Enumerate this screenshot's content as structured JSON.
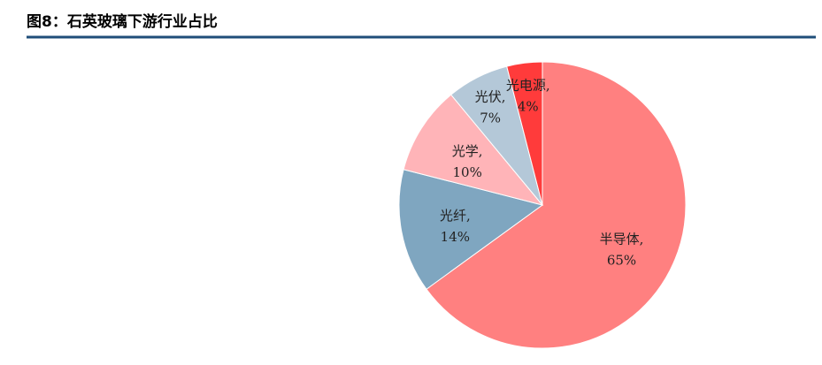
{
  "chart_data": {
    "type": "pie",
    "title": "图8：石英玻璃下游行业占比",
    "categories": [
      "半导体,",
      "光纤,",
      "光学,",
      "光伏,",
      "光电源,"
    ],
    "values": [
      65,
      14,
      10,
      7,
      4
    ],
    "value_labels": [
      "65%",
      "14%",
      "10%",
      "7%",
      "4%"
    ],
    "colors": [
      "#ff8080",
      "#7fa6c0",
      "#ffb4b8",
      "#b4c8d8",
      "#ff3b3b"
    ]
  }
}
